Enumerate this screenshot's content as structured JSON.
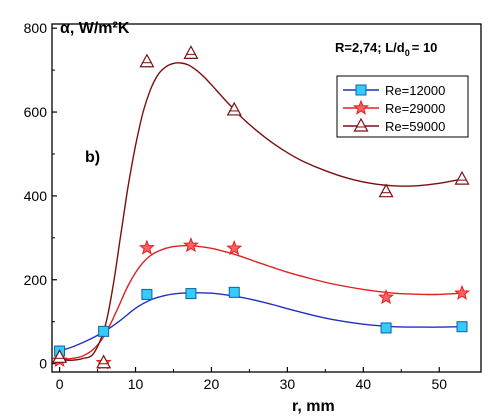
{
  "chart_data": {
    "type": "scatter",
    "title": "",
    "ylabel": "α, W/m²K",
    "xlabel": "r, mm",
    "params_label": "R=2,74; L/d",
    "params_sub": "0",
    "params_value": "= 10",
    "panel_label": "b)",
    "xlim": [
      -1,
      55.5
    ],
    "ylim": [
      -20,
      810
    ],
    "x_ticks": [
      0,
      10,
      20,
      30,
      40,
      50
    ],
    "y_ticks": [
      0,
      200,
      400,
      600,
      800
    ],
    "legend_position": "top-right",
    "series": [
      {
        "name": "Re=12000",
        "marker": "square",
        "marker_color": "#33ccff",
        "line_color": "#2030c0",
        "x": [
          0,
          5.8,
          11.5,
          17.3,
          23,
          43,
          53
        ],
        "y": [
          30,
          77,
          165,
          167,
          170,
          85,
          88
        ],
        "curve_x": [
          0,
          2,
          4,
          6,
          8,
          10,
          12,
          14,
          16,
          18,
          20,
          22,
          24,
          26,
          28,
          30,
          33,
          36,
          40,
          44,
          48,
          50,
          53
        ],
        "curve_y": [
          30,
          42,
          58,
          78,
          103,
          132,
          152,
          163,
          168,
          169,
          168,
          164,
          158,
          150,
          141,
          131,
          117,
          105,
          94,
          88,
          87,
          87,
          88
        ]
      },
      {
        "name": "Re=29000",
        "marker": "star",
        "marker_color": "#ff6060",
        "line_color": "#e02020",
        "x": [
          0,
          5.8,
          11.5,
          17.3,
          23,
          43,
          53
        ],
        "y": [
          8,
          2,
          276,
          282,
          275,
          158,
          168
        ],
        "curve_x": [
          0,
          1.5,
          3,
          4.5,
          6,
          7.5,
          9,
          10.5,
          12,
          14,
          16,
          18,
          20,
          22,
          24,
          26,
          28,
          30,
          33,
          36,
          40,
          44,
          48,
          50,
          53
        ],
        "curve_y": [
          10,
          12,
          18,
          35,
          70,
          125,
          185,
          230,
          258,
          275,
          281,
          280,
          275,
          266,
          255,
          242,
          230,
          218,
          203,
          190,
          177,
          168,
          165,
          165,
          168
        ]
      },
      {
        "name": "Re=59000",
        "marker": "triangle",
        "marker_color": "#ffffff",
        "line_color": "#7a1010",
        "x": [
          0,
          5.8,
          11.5,
          17.3,
          23,
          43,
          53
        ],
        "y": [
          15,
          2,
          720,
          740,
          605,
          410,
          440
        ],
        "curve_x": [
          0,
          1.5,
          3,
          4.5,
          6,
          7,
          8,
          9,
          10,
          11,
          12,
          13,
          14,
          15,
          16,
          17,
          18,
          19,
          20,
          21,
          22,
          24,
          26,
          28,
          30,
          32,
          35,
          38,
          41,
          44,
          47,
          50,
          53
        ],
        "curve_y": [
          10,
          8,
          12,
          25,
          90,
          180,
          300,
          420,
          520,
          600,
          655,
          690,
          708,
          716,
          717,
          712,
          700,
          684,
          665,
          645,
          625,
          587,
          555,
          527,
          503,
          483,
          460,
          442,
          430,
          424,
          424,
          430,
          440
        ]
      }
    ]
  }
}
